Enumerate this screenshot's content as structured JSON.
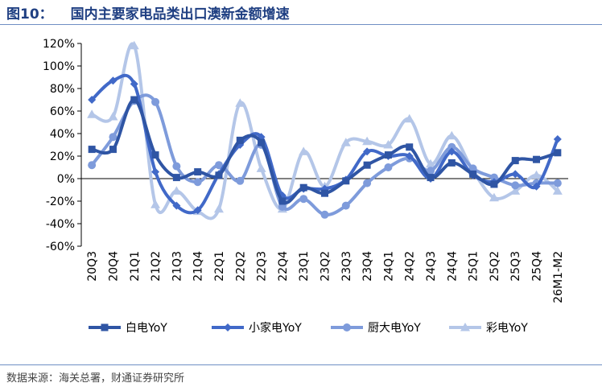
{
  "figure": {
    "label": "图10：",
    "title": "国内主要家电品类出口澳新金额增速",
    "source": "数据来源：海关总署，财通证券研究所"
  },
  "chart_data": {
    "type": "line",
    "categories": [
      "20Q3",
      "20Q4",
      "21Q1",
      "21Q2",
      "21Q3",
      "21Q4",
      "22Q1",
      "22Q2",
      "22Q3",
      "22Q4",
      "23Q1",
      "23Q2",
      "23Q3",
      "23Q4",
      "24Q1",
      "24Q2",
      "24Q3",
      "24Q4",
      "25Q1",
      "25Q2",
      "25Q3",
      "25Q4",
      "26M1-M2"
    ],
    "y_unit": "%",
    "ylim": [
      -60,
      120
    ],
    "y_ticks": [
      -60,
      -40,
      -20,
      0,
      20,
      40,
      60,
      80,
      100,
      120
    ],
    "y_tick_labels": [
      "-60%",
      "-40%",
      "-20%",
      "0%",
      "20%",
      "40%",
      "60%",
      "80%",
      "100%",
      "120%"
    ],
    "smooth": true,
    "legend_position": "bottom",
    "series": [
      {
        "name": "白电YoY",
        "marker": "square",
        "color": "#2f55a4",
        "values": [
          26,
          26,
          70,
          21,
          1,
          6,
          3,
          34,
          32,
          -20,
          -8,
          -13,
          -2,
          12,
          21,
          28,
          1,
          14,
          4,
          -5,
          16,
          17,
          23
        ]
      },
      {
        "name": "小家电YoY",
        "marker": "diamond",
        "color": "#4169c8",
        "values": [
          70,
          87,
          84,
          6,
          -24,
          -28,
          4,
          30,
          37,
          -15,
          -9,
          -9,
          -1,
          24,
          20,
          20,
          0,
          24,
          3,
          -3,
          4,
          -7,
          35
        ]
      },
      {
        "name": "厨大电YoY",
        "marker": "circle",
        "color": "#7e9bdb",
        "values": [
          12,
          37,
          69,
          68,
          11,
          -3,
          12,
          -2,
          30,
          -25,
          -18,
          -32,
          -24,
          -4,
          10,
          18,
          7,
          28,
          9,
          1,
          -6,
          -4,
          -4
        ]
      },
      {
        "name": "彩电YoY",
        "marker": "triangle",
        "color": "#b4c6e8",
        "values": [
          57,
          55,
          118,
          -23,
          -11,
          -29,
          -27,
          67,
          9,
          -27,
          24,
          -7,
          32,
          33,
          30,
          53,
          13,
          38,
          7,
          -17,
          -11,
          3,
          -11
        ]
      }
    ]
  }
}
